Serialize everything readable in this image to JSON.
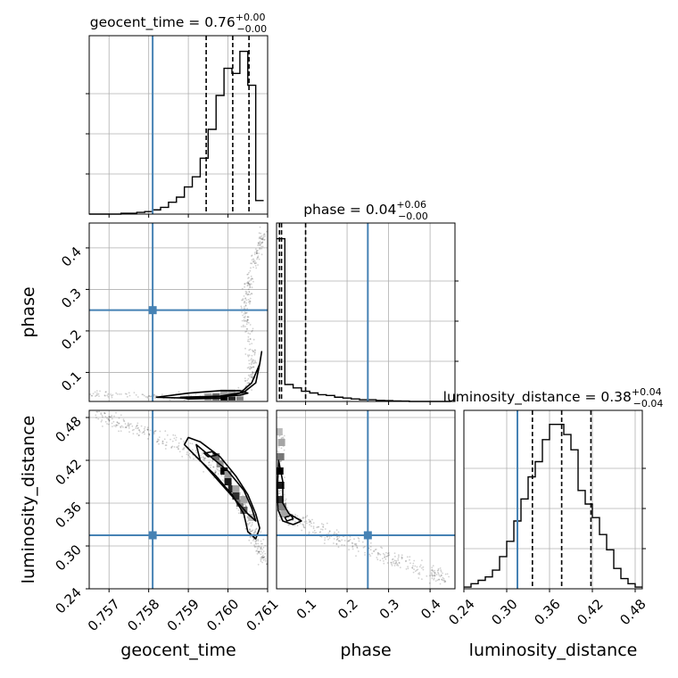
{
  "chart_data": {
    "type": "corner",
    "parameters": [
      {
        "name": "geocent_time",
        "axis_label": "geocent_time",
        "title": {
          "prefix": "geocent_time = 0.76",
          "plus": "+0.00",
          "minus": "−0.00"
        },
        "range": [
          0.7565,
          0.761
        ],
        "ticks": [
          0.757,
          0.758,
          0.759,
          0.76,
          0.761
        ],
        "tick_labels": [
          "0.757",
          "0.758",
          "0.759",
          "0.760",
          "0.761"
        ],
        "truth": 0.7581,
        "quantiles": [
          0.75945,
          0.76012,
          0.76053
        ],
        "hist_bins": [
          0.7565,
          0.7567,
          0.7569,
          0.7571,
          0.7573,
          0.7575,
          0.7577,
          0.7579,
          0.7581,
          0.7583,
          0.7585,
          0.7587,
          0.7589,
          0.7591,
          0.7593,
          0.7595,
          0.7597,
          0.7599,
          0.7601,
          0.7603,
          0.7605,
          0.7607,
          0.7609
        ],
        "hist_counts": [
          0,
          0,
          0,
          0,
          0.5,
          0.5,
          1,
          1.5,
          2.5,
          4,
          7,
          10,
          16,
          22,
          33,
          50,
          70,
          86,
          83,
          96,
          76,
          8
        ]
      },
      {
        "name": "phase",
        "axis_label": "phase",
        "title": {
          "prefix": "phase = 0.04",
          "plus": "+0.06",
          "minus": "−0.00"
        },
        "range": [
          0.03,
          0.46
        ],
        "ticks": [
          0.1,
          0.2,
          0.3,
          0.4
        ],
        "tick_labels": [
          "0.1",
          "0.2",
          "0.3",
          "0.4"
        ],
        "truth": 0.25,
        "quantiles": [
          0.037,
          0.042,
          0.1
        ],
        "hist_bins": [
          0.03,
          0.05,
          0.07,
          0.09,
          0.11,
          0.13,
          0.15,
          0.17,
          0.19,
          0.21,
          0.23,
          0.25,
          0.27,
          0.29,
          0.31,
          0.33,
          0.35,
          0.37,
          0.39,
          0.41,
          0.43,
          0.45
        ],
        "hist_counts": [
          96,
          10,
          8,
          6,
          5,
          4,
          3.5,
          2.5,
          2,
          1.5,
          1,
          1,
          0.6,
          0.5,
          0.3,
          0.2,
          0,
          0,
          0,
          0,
          0
        ]
      },
      {
        "name": "luminosity_distance",
        "axis_label": "luminosity_distance",
        "title": {
          "prefix": "luminosity_distance = 0.38",
          "plus": "+0.04",
          "minus": "−0.04"
        },
        "range": [
          0.24,
          0.49
        ],
        "ticks": [
          0.24,
          0.3,
          0.36,
          0.42,
          0.48
        ],
        "tick_labels": [
          "0.24",
          "0.30",
          "0.36",
          "0.42",
          "0.48"
        ],
        "truth": 0.315,
        "quantiles": [
          0.336,
          0.377,
          0.418
        ],
        "hist_bins": [
          0.24,
          0.25,
          0.26,
          0.27,
          0.28,
          0.29,
          0.3,
          0.31,
          0.32,
          0.33,
          0.34,
          0.35,
          0.36,
          0.37,
          0.38,
          0.39,
          0.4,
          0.41,
          0.42,
          0.43,
          0.44,
          0.45,
          0.46,
          0.47,
          0.48,
          0.49
        ],
        "hist_counts": [
          1,
          3,
          5,
          7,
          11,
          19,
          28,
          40,
          53,
          66,
          75,
          88,
          97,
          97,
          91,
          82,
          58,
          50,
          42,
          32,
          23,
          12,
          6,
          3,
          1
        ]
      }
    ],
    "pairs": [
      {
        "x": "geocent_time",
        "y": "phase",
        "truth": [
          0.7581,
          0.25
        ],
        "ridge": [
          [
            0.7566,
            0.049
          ],
          [
            0.7575,
            0.045
          ],
          [
            0.7585,
            0.042
          ],
          [
            0.7595,
            0.042
          ],
          [
            0.7601,
            0.043
          ],
          [
            0.7605,
            0.06
          ],
          [
            0.7606,
            0.1
          ],
          [
            0.7606,
            0.15
          ],
          [
            0.7605,
            0.2
          ],
          [
            0.7604,
            0.25
          ],
          [
            0.7605,
            0.3
          ],
          [
            0.7606,
            0.35
          ],
          [
            0.7608,
            0.4
          ],
          [
            0.7609,
            0.44
          ]
        ],
        "contours": [
          [
            [
              0.7588,
              0.04
            ],
            [
              0.7598,
              0.043
            ],
            [
              0.7604,
              0.052
            ],
            [
              0.7607,
              0.075
            ],
            [
              0.7608,
              0.12
            ],
            [
              0.76085,
              0.15
            ],
            [
              0.7608,
              0.12
            ],
            [
              0.7606,
              0.075
            ],
            [
              0.7603,
              0.05
            ],
            [
              0.7598,
              0.038
            ],
            [
              0.759,
              0.036
            ]
          ],
          [
            [
              0.7582,
              0.04
            ],
            [
              0.759,
              0.05
            ],
            [
              0.7598,
              0.056
            ],
            [
              0.7603,
              0.056
            ],
            [
              0.7605,
              0.05
            ],
            [
              0.7603,
              0.045
            ],
            [
              0.7598,
              0.042
            ],
            [
              0.759,
              0.038
            ]
          ]
        ],
        "density_cells": [
          [
            0.7599,
            0.041,
            1.0
          ],
          [
            0.7601,
            0.041,
            0.85
          ],
          [
            0.7597,
            0.041,
            0.55
          ],
          [
            0.7603,
            0.041,
            0.45
          ],
          [
            0.7595,
            0.041,
            0.3
          ],
          [
            0.7599,
            0.05,
            0.3
          ],
          [
            0.7601,
            0.05,
            0.3
          ],
          [
            0.7603,
            0.05,
            0.15
          ]
        ]
      },
      {
        "x": "geocent_time",
        "y": "luminosity_distance",
        "truth": [
          0.7581,
          0.315
        ],
        "ridge": [
          [
            0.7567,
            0.482
          ],
          [
            0.7572,
            0.474
          ],
          [
            0.7577,
            0.465
          ],
          [
            0.7582,
            0.455
          ],
          [
            0.7587,
            0.444
          ],
          [
            0.7592,
            0.428
          ],
          [
            0.7596,
            0.41
          ],
          [
            0.76,
            0.39
          ],
          [
            0.7603,
            0.365
          ],
          [
            0.7605,
            0.34
          ],
          [
            0.7606,
            0.32
          ],
          [
            0.7608,
            0.3
          ],
          [
            0.7609,
            0.28
          ]
        ],
        "contours": [
          [
            [
              0.759,
              0.452
            ],
            [
              0.7593,
              0.446
            ],
            [
              0.7598,
              0.425
            ],
            [
              0.7602,
              0.398
            ],
            [
              0.7605,
              0.372
            ],
            [
              0.7607,
              0.345
            ],
            [
              0.7608,
              0.325
            ],
            [
              0.7607,
              0.31
            ],
            [
              0.7605,
              0.32
            ],
            [
              0.7604,
              0.345
            ],
            [
              0.7601,
              0.372
            ],
            [
              0.7597,
              0.398
            ],
            [
              0.7592,
              0.425
            ],
            [
              0.7589,
              0.442
            ]
          ],
          [
            [
              0.7592,
              0.442
            ],
            [
              0.7595,
              0.428
            ],
            [
              0.76,
              0.405
            ],
            [
              0.7604,
              0.378
            ],
            [
              0.7606,
              0.353
            ],
            [
              0.7607,
              0.335
            ],
            [
              0.7605,
              0.345
            ],
            [
              0.7601,
              0.37
            ],
            [
              0.7597,
              0.395
            ],
            [
              0.7593,
              0.42
            ]
          ],
          [
            [
              0.7596,
              0.432
            ],
            [
              0.7597,
              0.427
            ],
            [
              0.7595,
              0.425
            ],
            [
              0.7594,
              0.43
            ]
          ]
        ],
        "density_cells": [
          [
            0.7597,
            0.425,
            0.55
          ],
          [
            0.7599,
            0.405,
            1.0
          ],
          [
            0.76,
            0.39,
            0.9
          ],
          [
            0.7601,
            0.38,
            0.85
          ],
          [
            0.7602,
            0.37,
            0.8
          ],
          [
            0.7604,
            0.35,
            0.6
          ],
          [
            0.7603,
            0.36,
            0.5
          ],
          [
            0.7598,
            0.415,
            0.4
          ],
          [
            0.76,
            0.4,
            0.35
          ],
          [
            0.7602,
            0.38,
            0.3
          ],
          [
            0.7604,
            0.365,
            0.3
          ],
          [
            0.7606,
            0.34,
            0.2
          ]
        ]
      },
      {
        "x": "phase",
        "y": "luminosity_distance",
        "truth": [
          0.25,
          0.315
        ],
        "ridge": [
          [
            0.04,
            0.46
          ],
          [
            0.036,
            0.4
          ],
          [
            0.038,
            0.36
          ],
          [
            0.05,
            0.345
          ],
          [
            0.1,
            0.33
          ],
          [
            0.15,
            0.318
          ],
          [
            0.2,
            0.305
          ],
          [
            0.25,
            0.295
          ],
          [
            0.3,
            0.285
          ],
          [
            0.35,
            0.274
          ],
          [
            0.4,
            0.262
          ],
          [
            0.44,
            0.255
          ]
        ],
        "contours": [
          [
            [
              0.035,
              0.42
            ],
            [
              0.045,
              0.39
            ],
            [
              0.045,
              0.36
            ],
            [
              0.06,
              0.345
            ],
            [
              0.09,
              0.335
            ],
            [
              0.07,
              0.33
            ],
            [
              0.045,
              0.335
            ],
            [
              0.034,
              0.35
            ],
            [
              0.032,
              0.38
            ]
          ],
          [
            [
              0.05,
              0.34
            ],
            [
              0.065,
              0.343
            ],
            [
              0.07,
              0.338
            ],
            [
              0.055,
              0.335
            ]
          ]
        ],
        "density_cells": [
          [
            0.038,
            0.405,
            1.0
          ],
          [
            0.04,
            0.385,
            0.9
          ],
          [
            0.038,
            0.365,
            0.8
          ],
          [
            0.04,
            0.425,
            0.5
          ],
          [
            0.045,
            0.355,
            0.45
          ],
          [
            0.042,
            0.445,
            0.3
          ],
          [
            0.036,
            0.46,
            0.2
          ],
          [
            0.05,
            0.345,
            0.3
          ]
        ]
      }
    ]
  }
}
